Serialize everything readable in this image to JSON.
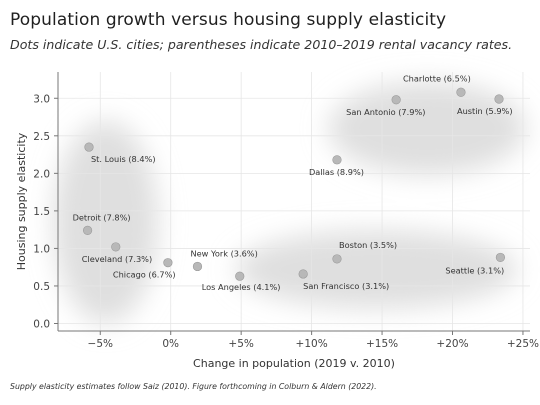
{
  "header": {
    "title": "Population growth versus housing supply elasticity",
    "subtitle": "Dots indicate U.S. cities; parentheses indicate 2010–2019 rental vacancy rates."
  },
  "footer": {
    "note": "Supply elasticity estimates follow Saiz (2010). Figure forthcoming in Colburn & Aldern (2022)."
  },
  "chart_data": {
    "type": "scatter",
    "xlabel": "Change in population (2019 v. 2010)",
    "ylabel": "Housing supply elasticity",
    "xlim": [
      -8,
      25.5
    ],
    "ylim": [
      -0.1,
      3.35
    ],
    "x_ticks": [
      -5,
      0,
      5,
      10,
      15,
      20,
      25
    ],
    "x_tick_labels": [
      "−5%",
      "0%",
      "+5%",
      "+10%",
      "+15%",
      "+20%",
      "+25%"
    ],
    "y_ticks": [
      0.0,
      0.5,
      1.0,
      1.5,
      2.0,
      2.5,
      3.0
    ],
    "y_tick_labels": [
      "0.0",
      "0.5",
      "1.0",
      "1.5",
      "2.0",
      "2.5",
      "3.0"
    ],
    "grid": true,
    "point_color": "#b8b8b8",
    "cluster_color": "#d9d9d9",
    "points": [
      {
        "label": "St. Louis (8.4%)",
        "x": -5.8,
        "y": 2.35
      },
      {
        "label": "Detroit (7.8%)",
        "x": -5.9,
        "y": 1.24
      },
      {
        "label": "Cleveland (7.3%)",
        "x": -3.9,
        "y": 1.02
      },
      {
        "label": "Chicago (6.7%)",
        "x": -0.2,
        "y": 0.81
      },
      {
        "label": "New York (3.6%)",
        "x": 1.9,
        "y": 0.76
      },
      {
        "label": "Los Angeles (4.1%)",
        "x": 4.9,
        "y": 0.63
      },
      {
        "label": "San Francisco (3.1%)",
        "x": 9.4,
        "y": 0.66
      },
      {
        "label": "Boston (3.5%)",
        "x": 11.8,
        "y": 0.86
      },
      {
        "label": "Seattle (3.1%)",
        "x": 23.4,
        "y": 0.88
      },
      {
        "label": "Dallas (8.9%)",
        "x": 11.8,
        "y": 2.18
      },
      {
        "label": "San Antonio (7.9%)",
        "x": 16.0,
        "y": 2.98
      },
      {
        "label": "Charlotte (6.5%)",
        "x": 20.6,
        "y": 3.08
      },
      {
        "label": "Austin (5.9%)",
        "x": 23.3,
        "y": 2.99
      }
    ]
  }
}
